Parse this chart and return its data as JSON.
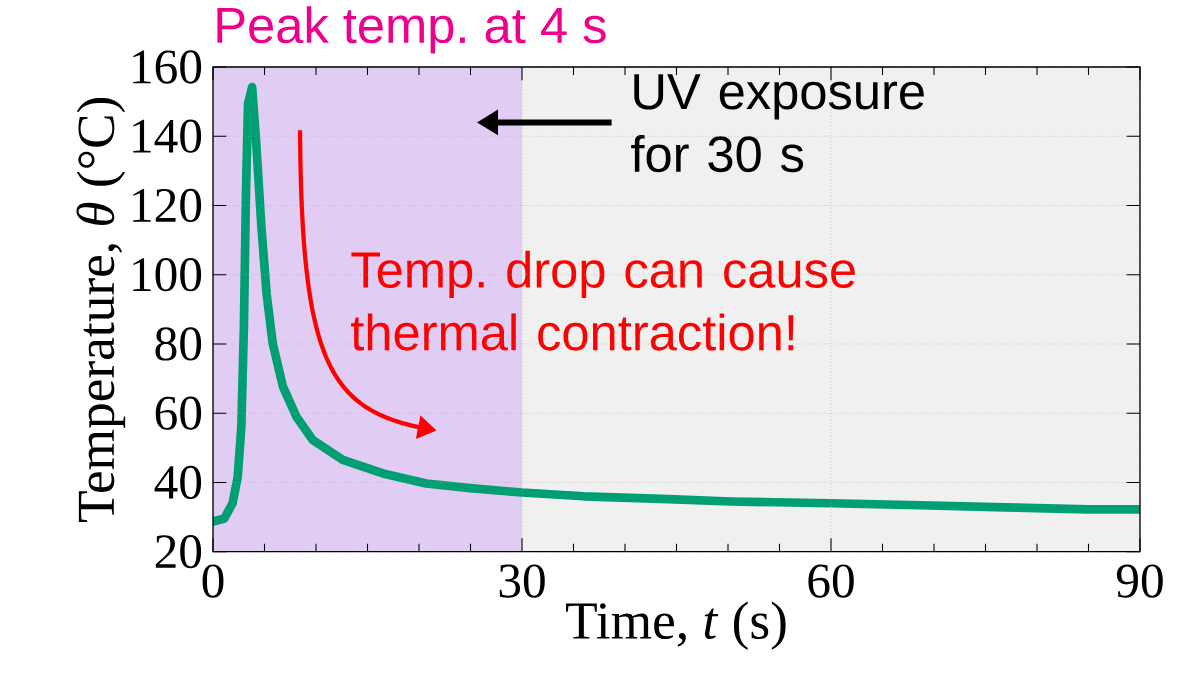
{
  "chart_data": {
    "type": "line",
    "xlabel": "Time, *t* (s)",
    "ylabel": "Temperature, *θ*  (°C)",
    "annotations": [
      "Peak temp. at 4 s",
      "UV exposure for 30 s",
      "Temp. drop can cause thermal contraction!"
    ],
    "x": [
      0,
      1.1,
      1.9,
      2.4,
      2.75,
      3,
      3.2,
      3.4,
      3.8,
      4.2,
      4.7,
      5.2,
      5.8,
      6.8,
      8.1,
      9.7,
      12.6,
      16.5,
      20.7,
      25.2,
      30,
      36,
      44.2,
      50.3,
      60,
      68.7,
      76.9,
      85,
      90
    ],
    "values": [
      28.7,
      29.6,
      34,
      41.6,
      56,
      85,
      123.5,
      149.4,
      154.2,
      137.9,
      113.8,
      94.6,
      80.1,
      67.6,
      59,
      52.2,
      46.5,
      42.6,
      39.7,
      38.3,
      37.1,
      36,
      35.2,
      34.5,
      34,
      33.4,
      32.8,
      32.2,
      32.2
    ],
    "color": "#009e73",
    "xlim": [
      0,
      90
    ],
    "ylim": [
      20,
      160
    ],
    "xticks": [
      0,
      30,
      60,
      90
    ],
    "yticks": [
      20,
      40,
      60,
      80,
      100,
      120,
      140,
      160
    ],
    "grid": true,
    "bands": [
      {
        "axis": "x",
        "from": 0,
        "to": 30,
        "color": "#e1cdf3"
      }
    ]
  }
}
